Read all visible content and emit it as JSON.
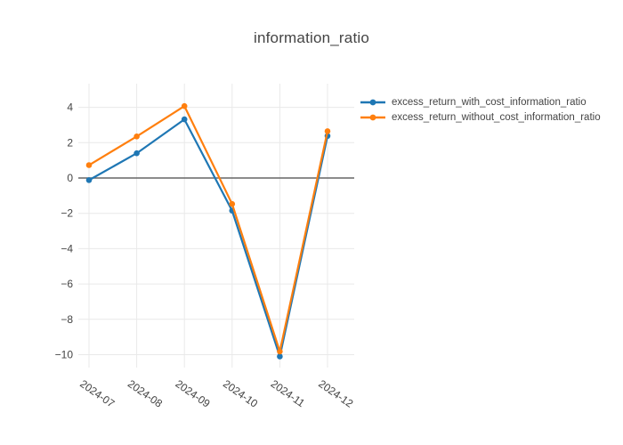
{
  "title": "information_ratio",
  "chart_data": {
    "type": "line",
    "title": "information_ratio",
    "xlabel": "",
    "ylabel": "",
    "categories": [
      "2024-07",
      "2024-08",
      "2024-09",
      "2024-10",
      "2024-11",
      "2024-12"
    ],
    "series": [
      {
        "name": "excess_return_with_cost_information_ratio",
        "color": "#1f77b4",
        "values": [
          -0.12,
          1.4,
          3.32,
          -1.85,
          -10.1,
          2.38
        ]
      },
      {
        "name": "excess_return_without_cost_information_ratio",
        "color": "#ff7f0e",
        "values": [
          0.73,
          2.35,
          4.07,
          -1.47,
          -9.82,
          2.65
        ]
      }
    ],
    "ylim": [
      -10.73,
      5.34
    ],
    "yticks": [
      4,
      2,
      0,
      -2,
      -4,
      -6,
      -8,
      -10
    ],
    "grid": true,
    "zeroline": true,
    "legend_position": "right-top",
    "marker": "circle",
    "colors": {
      "grid": "#e9e9e9",
      "zeroline": "#666666",
      "tick_text": "#444444",
      "title_text": "#444444",
      "background": "#ffffff"
    }
  }
}
